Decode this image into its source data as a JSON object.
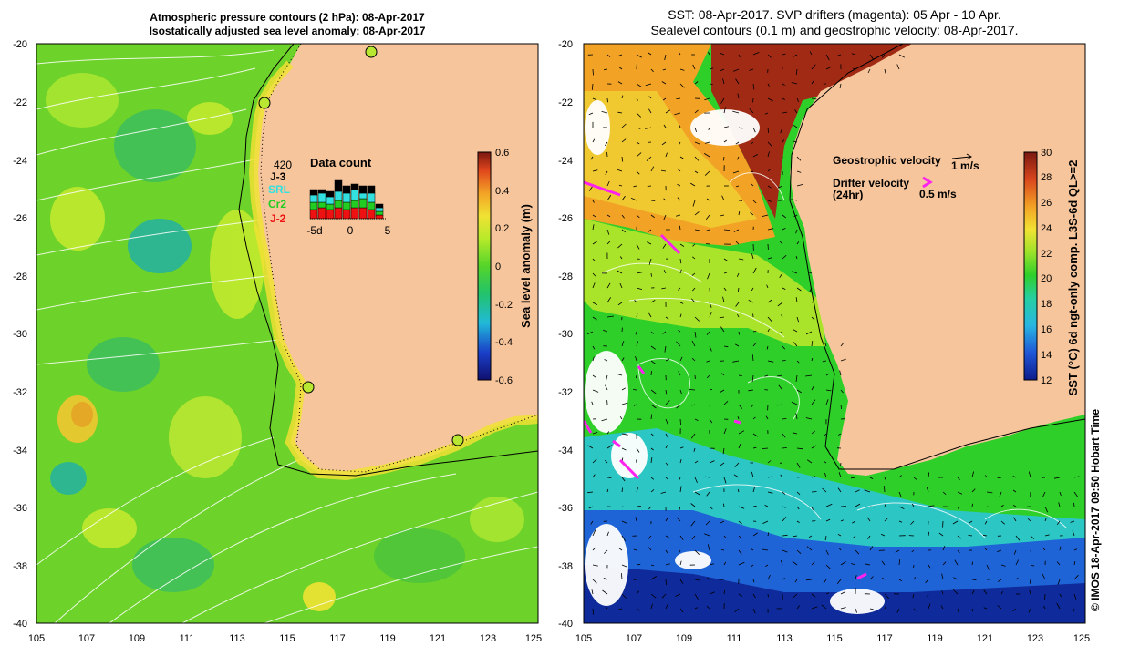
{
  "left_panel": {
    "title_line1": "Atmospheric pressure contours (2 hPa): 08-Apr-2017",
    "title_line2": "Isostatically adjusted sea level anomaly: 08-Apr-2017",
    "lat_ticks": [
      "-20",
      "-22",
      "-24",
      "-26",
      "-28",
      "-30",
      "-32",
      "-34",
      "-36",
      "-38",
      "-40"
    ],
    "lon_ticks": [
      "105",
      "107",
      "109",
      "111",
      "113",
      "115",
      "117",
      "119",
      "121",
      "123",
      "125"
    ],
    "colorbar": {
      "label": "Sea level anomaly (m)",
      "ticks": [
        "0.6",
        "0.4",
        "0.2",
        "0",
        "-0.2",
        "-0.4",
        "-0.6"
      ]
    },
    "data_count": {
      "title": "Data count",
      "max_label": "420",
      "legend": [
        {
          "name": "J-3",
          "color": "#000000"
        },
        {
          "name": "SRL",
          "color": "#33e0e0"
        },
        {
          "name": "Cr2",
          "color": "#22cc22"
        },
        {
          "name": "J-2",
          "color": "#ee1111"
        }
      ],
      "x_ticks": [
        "-5d",
        "0",
        "5"
      ]
    }
  },
  "right_panel": {
    "title_line1": "SST: 08-Apr-2017. SVP drifters (magenta): 05 Apr - 10 Apr.",
    "title_line2": "Sealevel contours (0.1 m) and geostrophic velocity: 08-Apr-2017.",
    "lat_ticks": [
      "-20",
      "-22",
      "-24",
      "-26",
      "-28",
      "-30",
      "-32",
      "-34",
      "-36",
      "-38",
      "-40"
    ],
    "lon_ticks": [
      "105",
      "107",
      "109",
      "111",
      "113",
      "115",
      "117",
      "119",
      "121",
      "123",
      "125"
    ],
    "colorbar": {
      "label": "SST (°C) 6d ngt-only comp. L3S-6d QL>=2",
      "ticks": [
        "30",
        "28",
        "26",
        "24",
        "22",
        "20",
        "18",
        "16",
        "14",
        "12"
      ]
    },
    "legend": {
      "geostrophic_label": "Geostrophic velocity",
      "geostrophic_scale": "1 m/s",
      "drifter_label": "Drifter velocity",
      "drifter_sub": "(24hr)",
      "drifter_scale": "0.5 m/s"
    },
    "credit": "© IMOS 18-Apr-2017 09:50 Hobart Time"
  },
  "colors": {
    "land": "#f7c59b",
    "sla_bg": "#7fd62a",
    "drifter": "#ff22ee"
  }
}
